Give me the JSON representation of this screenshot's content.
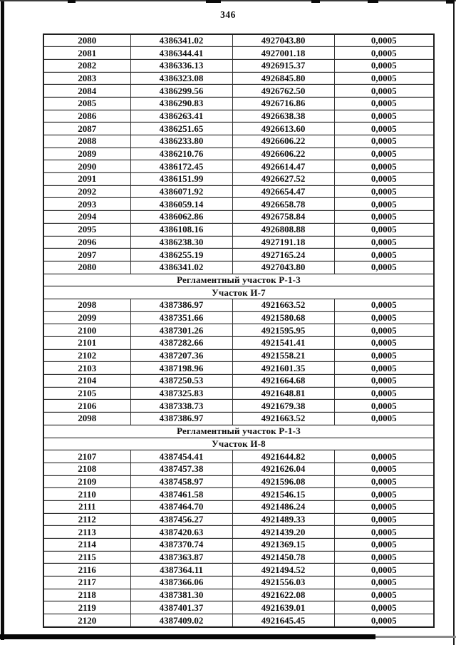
{
  "page": {
    "number": "346"
  },
  "table": {
    "rows": [
      {
        "type": "data",
        "cells": [
          "2080",
          "4386341.02",
          "4927043.80",
          "0,0005"
        ]
      },
      {
        "type": "data",
        "cells": [
          "2081",
          "4386344.41",
          "4927001.18",
          "0,0005"
        ]
      },
      {
        "type": "data",
        "cells": [
          "2082",
          "4386336.13",
          "4926915.37",
          "0,0005"
        ]
      },
      {
        "type": "data",
        "cells": [
          "2083",
          "4386323.08",
          "4926845.80",
          "0,0005"
        ]
      },
      {
        "type": "data",
        "cells": [
          "2084",
          "4386299.56",
          "4926762.50",
          "0,0005"
        ]
      },
      {
        "type": "data",
        "cells": [
          "2085",
          "4386290.83",
          "4926716.86",
          "0,0005"
        ]
      },
      {
        "type": "data",
        "cells": [
          "2086",
          "4386263.41",
          "4926638.38",
          "0,0005"
        ]
      },
      {
        "type": "data",
        "cells": [
          "2087",
          "4386251.65",
          "4926613.60",
          "0,0005"
        ]
      },
      {
        "type": "data",
        "cells": [
          "2088",
          "4386233.80",
          "4926606.22",
          "0,0005"
        ]
      },
      {
        "type": "data",
        "cells": [
          "2089",
          "4386210.76",
          "4926606.22",
          "0,0005"
        ]
      },
      {
        "type": "data",
        "cells": [
          "2090",
          "4386172.45",
          "4926614.47",
          "0,0005"
        ]
      },
      {
        "type": "data",
        "cells": [
          "2091",
          "4386151.99",
          "4926627.52",
          "0,0005"
        ]
      },
      {
        "type": "data",
        "cells": [
          "2092",
          "4386071.92",
          "4926654.47",
          "0,0005"
        ]
      },
      {
        "type": "data",
        "cells": [
          "2093",
          "4386059.14",
          "4926658.78",
          "0,0005"
        ]
      },
      {
        "type": "data",
        "cells": [
          "2094",
          "4386062.86",
          "4926758.84",
          "0,0005"
        ]
      },
      {
        "type": "data",
        "cells": [
          "2095",
          "4386108.16",
          "4926808.88",
          "0,0005"
        ]
      },
      {
        "type": "data",
        "cells": [
          "2096",
          "4386238.30",
          "4927191.18",
          "0,0005"
        ]
      },
      {
        "type": "data",
        "cells": [
          "2097",
          "4386255.19",
          "4927165.24",
          "0,0005"
        ]
      },
      {
        "type": "data",
        "cells": [
          "2080",
          "4386341.02",
          "4927043.80",
          "0,0005"
        ]
      },
      {
        "type": "section",
        "label": "Регламентный участок Р-1-3"
      },
      {
        "type": "section",
        "label": "Участок И-7"
      },
      {
        "type": "data",
        "cells": [
          "2098",
          "4387386.97",
          "4921663.52",
          "0,0005"
        ]
      },
      {
        "type": "data",
        "cells": [
          "2099",
          "4387351.66",
          "4921580.68",
          "0,0005"
        ]
      },
      {
        "type": "data",
        "cells": [
          "2100",
          "4387301.26",
          "4921595.95",
          "0,0005"
        ]
      },
      {
        "type": "data",
        "cells": [
          "2101",
          "4387282.66",
          "4921541.41",
          "0,0005"
        ]
      },
      {
        "type": "data",
        "cells": [
          "2102",
          "4387207.36",
          "4921558.21",
          "0,0005"
        ]
      },
      {
        "type": "data",
        "cells": [
          "2103",
          "4387198.96",
          "4921601.35",
          "0,0005"
        ]
      },
      {
        "type": "data",
        "cells": [
          "2104",
          "4387250.53",
          "4921664.68",
          "0,0005"
        ]
      },
      {
        "type": "data",
        "cells": [
          "2105",
          "4387325.83",
          "4921648.81",
          "0,0005"
        ]
      },
      {
        "type": "data",
        "cells": [
          "2106",
          "4387338.73",
          "4921679.38",
          "0,0005"
        ]
      },
      {
        "type": "data",
        "cells": [
          "2098",
          "4387386.97",
          "4921663.52",
          "0,0005"
        ]
      },
      {
        "type": "section",
        "label": "Регламентный участок Р-1-3"
      },
      {
        "type": "section",
        "label": "Участок И-8"
      },
      {
        "type": "data",
        "cells": [
          "2107",
          "4387454.41",
          "4921644.82",
          "0,0005"
        ]
      },
      {
        "type": "data",
        "cells": [
          "2108",
          "4387457.38",
          "4921626.04",
          "0,0005"
        ]
      },
      {
        "type": "data",
        "cells": [
          "2109",
          "4387458.97",
          "4921596.08",
          "0,0005"
        ]
      },
      {
        "type": "data",
        "cells": [
          "2110",
          "4387461.58",
          "4921546.15",
          "0,0005"
        ]
      },
      {
        "type": "data",
        "cells": [
          "2111",
          "4387464.70",
          "4921486.24",
          "0,0005"
        ]
      },
      {
        "type": "data",
        "cells": [
          "2112",
          "4387456.27",
          "4921489.33",
          "0,0005"
        ]
      },
      {
        "type": "data",
        "cells": [
          "2113",
          "4387420.63",
          "4921439.20",
          "0,0005"
        ]
      },
      {
        "type": "data",
        "cells": [
          "2114",
          "4387370.74",
          "4921369.15",
          "0,0005"
        ]
      },
      {
        "type": "data",
        "cells": [
          "2115",
          "4387363.87",
          "4921450.78",
          "0,0005"
        ]
      },
      {
        "type": "data",
        "cells": [
          "2116",
          "4387364.11",
          "4921494.52",
          "0,0005"
        ]
      },
      {
        "type": "data",
        "cells": [
          "2117",
          "4387366.06",
          "4921556.03",
          "0,0005"
        ]
      },
      {
        "type": "data",
        "cells": [
          "2118",
          "4387381.30",
          "4921622.08",
          "0,0005"
        ]
      },
      {
        "type": "data",
        "cells": [
          "2119",
          "4387401.37",
          "4921639.01",
          "0,0005"
        ]
      },
      {
        "type": "data",
        "cells": [
          "2120",
          "4387409.02",
          "4921645.45",
          "0,0005"
        ]
      }
    ]
  },
  "colors": {
    "ink": "#0f0f0f",
    "frame": "#0b0b0b",
    "paper": "#ffffff"
  }
}
